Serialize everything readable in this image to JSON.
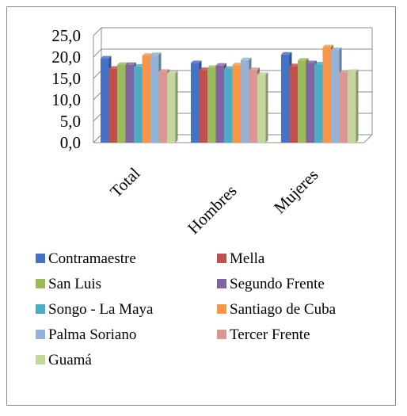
{
  "chart_data": {
    "type": "bar",
    "categories": [
      "Total",
      "Hombres",
      "Mujeres"
    ],
    "series": [
      {
        "name": "Contramaestre",
        "values": [
          19.7,
          18.6,
          20.6
        ],
        "color": "#4472c4"
      },
      {
        "name": "Mella",
        "values": [
          17.3,
          17.0,
          17.9
        ],
        "color": "#c0504d"
      },
      {
        "name": "San Luis",
        "values": [
          18.2,
          17.5,
          19.2
        ],
        "color": "#9bbb59"
      },
      {
        "name": "Segundo Frente",
        "values": [
          18.2,
          18.0,
          18.6
        ],
        "color": "#8064a2"
      },
      {
        "name": "Songo - La Maya",
        "values": [
          17.8,
          17.3,
          18.3
        ],
        "color": "#4bacc6"
      },
      {
        "name": "Santiago de Cuba",
        "values": [
          20.3,
          18.1,
          22.3
        ],
        "color": "#f79646"
      },
      {
        "name": "Palma Soriano",
        "values": [
          20.5,
          19.3,
          21.7
        ],
        "color": "#95b3d7"
      },
      {
        "name": "Tercer Frente",
        "values": [
          16.6,
          17.0,
          16.4
        ],
        "color": "#d99694"
      },
      {
        "name": "Guamá",
        "values": [
          16.2,
          15.9,
          16.6
        ],
        "color": "#c3d69b"
      }
    ],
    "y_ticks": [
      "25,0",
      "20,0",
      "15,0",
      "10,0",
      "5,0",
      "0,0"
    ],
    "ylim": [
      0,
      25
    ],
    "grid": true,
    "legend_position": "bottom"
  }
}
